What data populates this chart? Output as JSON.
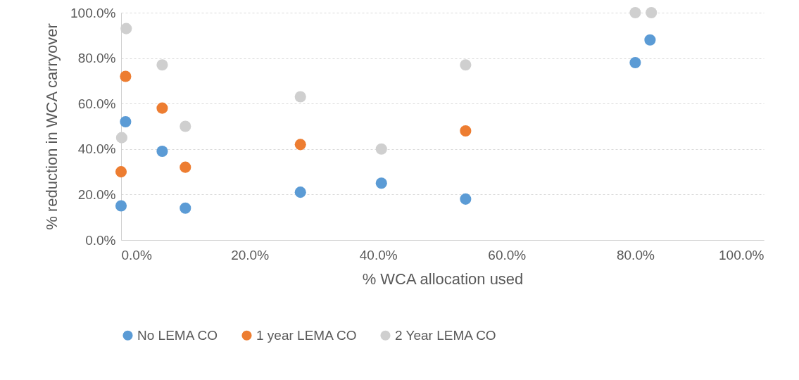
{
  "chart_data": {
    "type": "scatter",
    "xlabel": "% WCA allocation used",
    "ylabel": "% reduction in WCA carryover",
    "xlim": [
      0,
      100
    ],
    "ylim": [
      0,
      100
    ],
    "xticks": [
      {
        "value": 0,
        "label": "0.0%"
      },
      {
        "value": 20,
        "label": "20.0%"
      },
      {
        "value": 40,
        "label": "40.0%"
      },
      {
        "value": 60,
        "label": "60.0%"
      },
      {
        "value": 80,
        "label": "80.0%"
      },
      {
        "value": 100,
        "label": "100.0%"
      }
    ],
    "yticks": [
      {
        "value": 0,
        "label": "0.0%"
      },
      {
        "value": 20,
        "label": "20.0%"
      },
      {
        "value": 40,
        "label": "40.0%"
      },
      {
        "value": 60,
        "label": "60.0%"
      },
      {
        "value": 80,
        "label": "80.0%"
      },
      {
        "value": 100,
        "label": "100.0%"
      }
    ],
    "grid": "y",
    "legend": "bottom",
    "marker": "circle",
    "series": [
      {
        "name": "No LEMA CO",
        "color": "#5b9bd5",
        "x": [
          0,
          0.7,
          6.4,
          10,
          27.9,
          40.5,
          53.6,
          80,
          82.3
        ],
        "values": [
          15,
          52,
          39,
          14,
          21,
          25,
          18,
          78,
          88
        ]
      },
      {
        "name": "1 year LEMA CO",
        "color": "#ed7d31",
        "x": [
          0,
          0.7,
          6.4,
          10,
          27.9,
          53.6
        ],
        "values": [
          30,
          72,
          58,
          32,
          42,
          48
        ]
      },
      {
        "name": "2 Year LEMA CO",
        "color": "#cfcfcf",
        "x": [
          0.1,
          0.8,
          6.4,
          10,
          27.9,
          40.5,
          53.6,
          80,
          82.5
        ],
        "values": [
          45,
          93,
          77,
          50,
          63,
          40,
          77,
          100,
          100
        ]
      }
    ]
  }
}
